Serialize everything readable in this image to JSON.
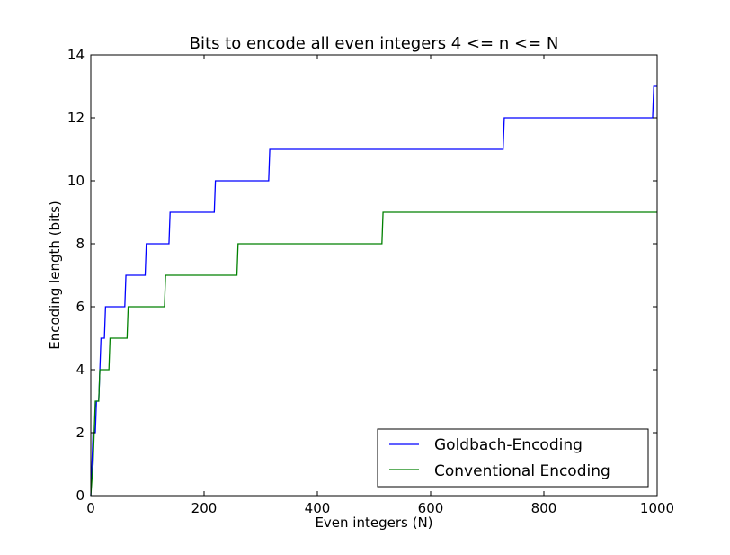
{
  "chart_data": {
    "type": "line",
    "title": "Bits to encode all even integers 4 <= n <= N",
    "xlabel": "Even integers (N)",
    "ylabel": "Encoding length (bits)",
    "xlim": [
      0,
      1000
    ],
    "ylim": [
      0,
      14
    ],
    "xticks": [
      0,
      200,
      400,
      600,
      800,
      1000
    ],
    "yticks": [
      0,
      2,
      4,
      6,
      8,
      10,
      12,
      14
    ],
    "grid": false,
    "legend_position": "bottom-right",
    "series": [
      {
        "name": "Goldbach-Encoding",
        "color": "#0000ff",
        "points": [
          [
            0,
            0
          ],
          [
            4,
            2
          ],
          [
            8,
            2
          ],
          [
            10,
            3
          ],
          [
            14,
            3
          ],
          [
            16,
            4
          ],
          [
            18,
            5
          ],
          [
            24,
            5
          ],
          [
            26,
            6
          ],
          [
            60,
            6
          ],
          [
            62,
            7
          ],
          [
            96,
            7
          ],
          [
            98,
            8
          ],
          [
            138,
            8
          ],
          [
            140,
            9
          ],
          [
            218,
            9
          ],
          [
            220,
            10
          ],
          [
            314,
            10
          ],
          [
            316,
            11
          ],
          [
            728,
            11
          ],
          [
            730,
            12
          ],
          [
            992,
            12
          ],
          [
            994,
            13
          ],
          [
            1000,
            13
          ]
        ]
      },
      {
        "name": "Conventional Encoding",
        "color": "#008000",
        "points": [
          [
            0,
            0
          ],
          [
            4,
            1
          ],
          [
            6,
            2
          ],
          [
            8,
            3
          ],
          [
            14,
            3
          ],
          [
            16,
            4
          ],
          [
            32,
            4
          ],
          [
            34,
            5
          ],
          [
            64,
            5
          ],
          [
            66,
            6
          ],
          [
            130,
            6
          ],
          [
            132,
            7
          ],
          [
            258,
            7
          ],
          [
            260,
            8
          ],
          [
            514,
            8
          ],
          [
            516,
            9
          ],
          [
            1000,
            9
          ]
        ]
      }
    ]
  }
}
